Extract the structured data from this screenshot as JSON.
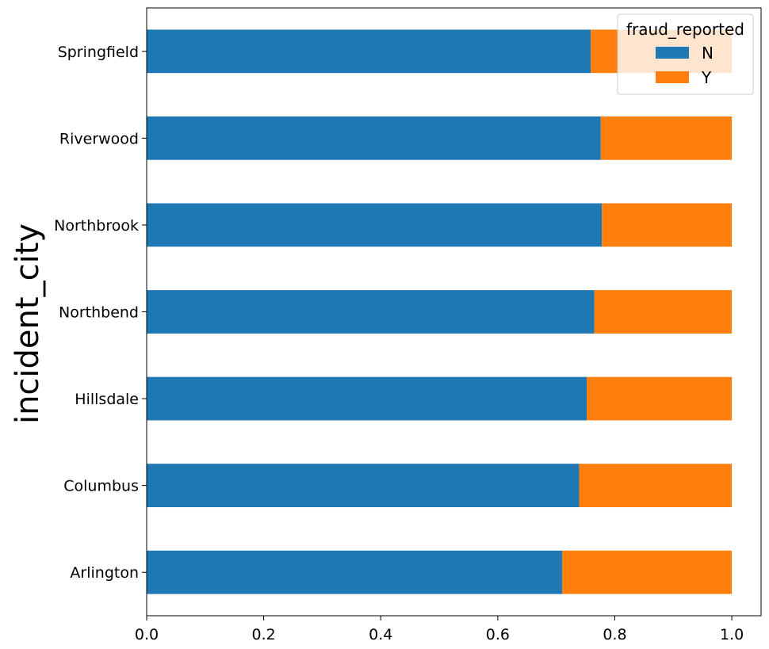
{
  "chart_data": {
    "type": "bar",
    "orientation": "horizontal",
    "stacked": true,
    "ylabel": "incident_city",
    "xlabel": "",
    "xlim": [
      0.0,
      1.05
    ],
    "xticks": [
      "0.0",
      "0.2",
      "0.4",
      "0.6",
      "0.8",
      "1.0"
    ],
    "grid": false,
    "legend_title": "fraud_reported",
    "legend_position": "top-right",
    "categories": [
      "Arlington",
      "Columbus",
      "Hillsdale",
      "Northbend",
      "Northbrook",
      "Riverwood",
      "Springfield"
    ],
    "series": [
      {
        "name": "N",
        "color": "#1f77b4",
        "values": [
          0.71,
          0.739,
          0.752,
          0.765,
          0.778,
          0.776,
          0.759
        ]
      },
      {
        "name": "Y",
        "color": "#ff7f0e",
        "values": [
          0.29,
          0.261,
          0.248,
          0.235,
          0.222,
          0.224,
          0.241
        ]
      }
    ]
  }
}
